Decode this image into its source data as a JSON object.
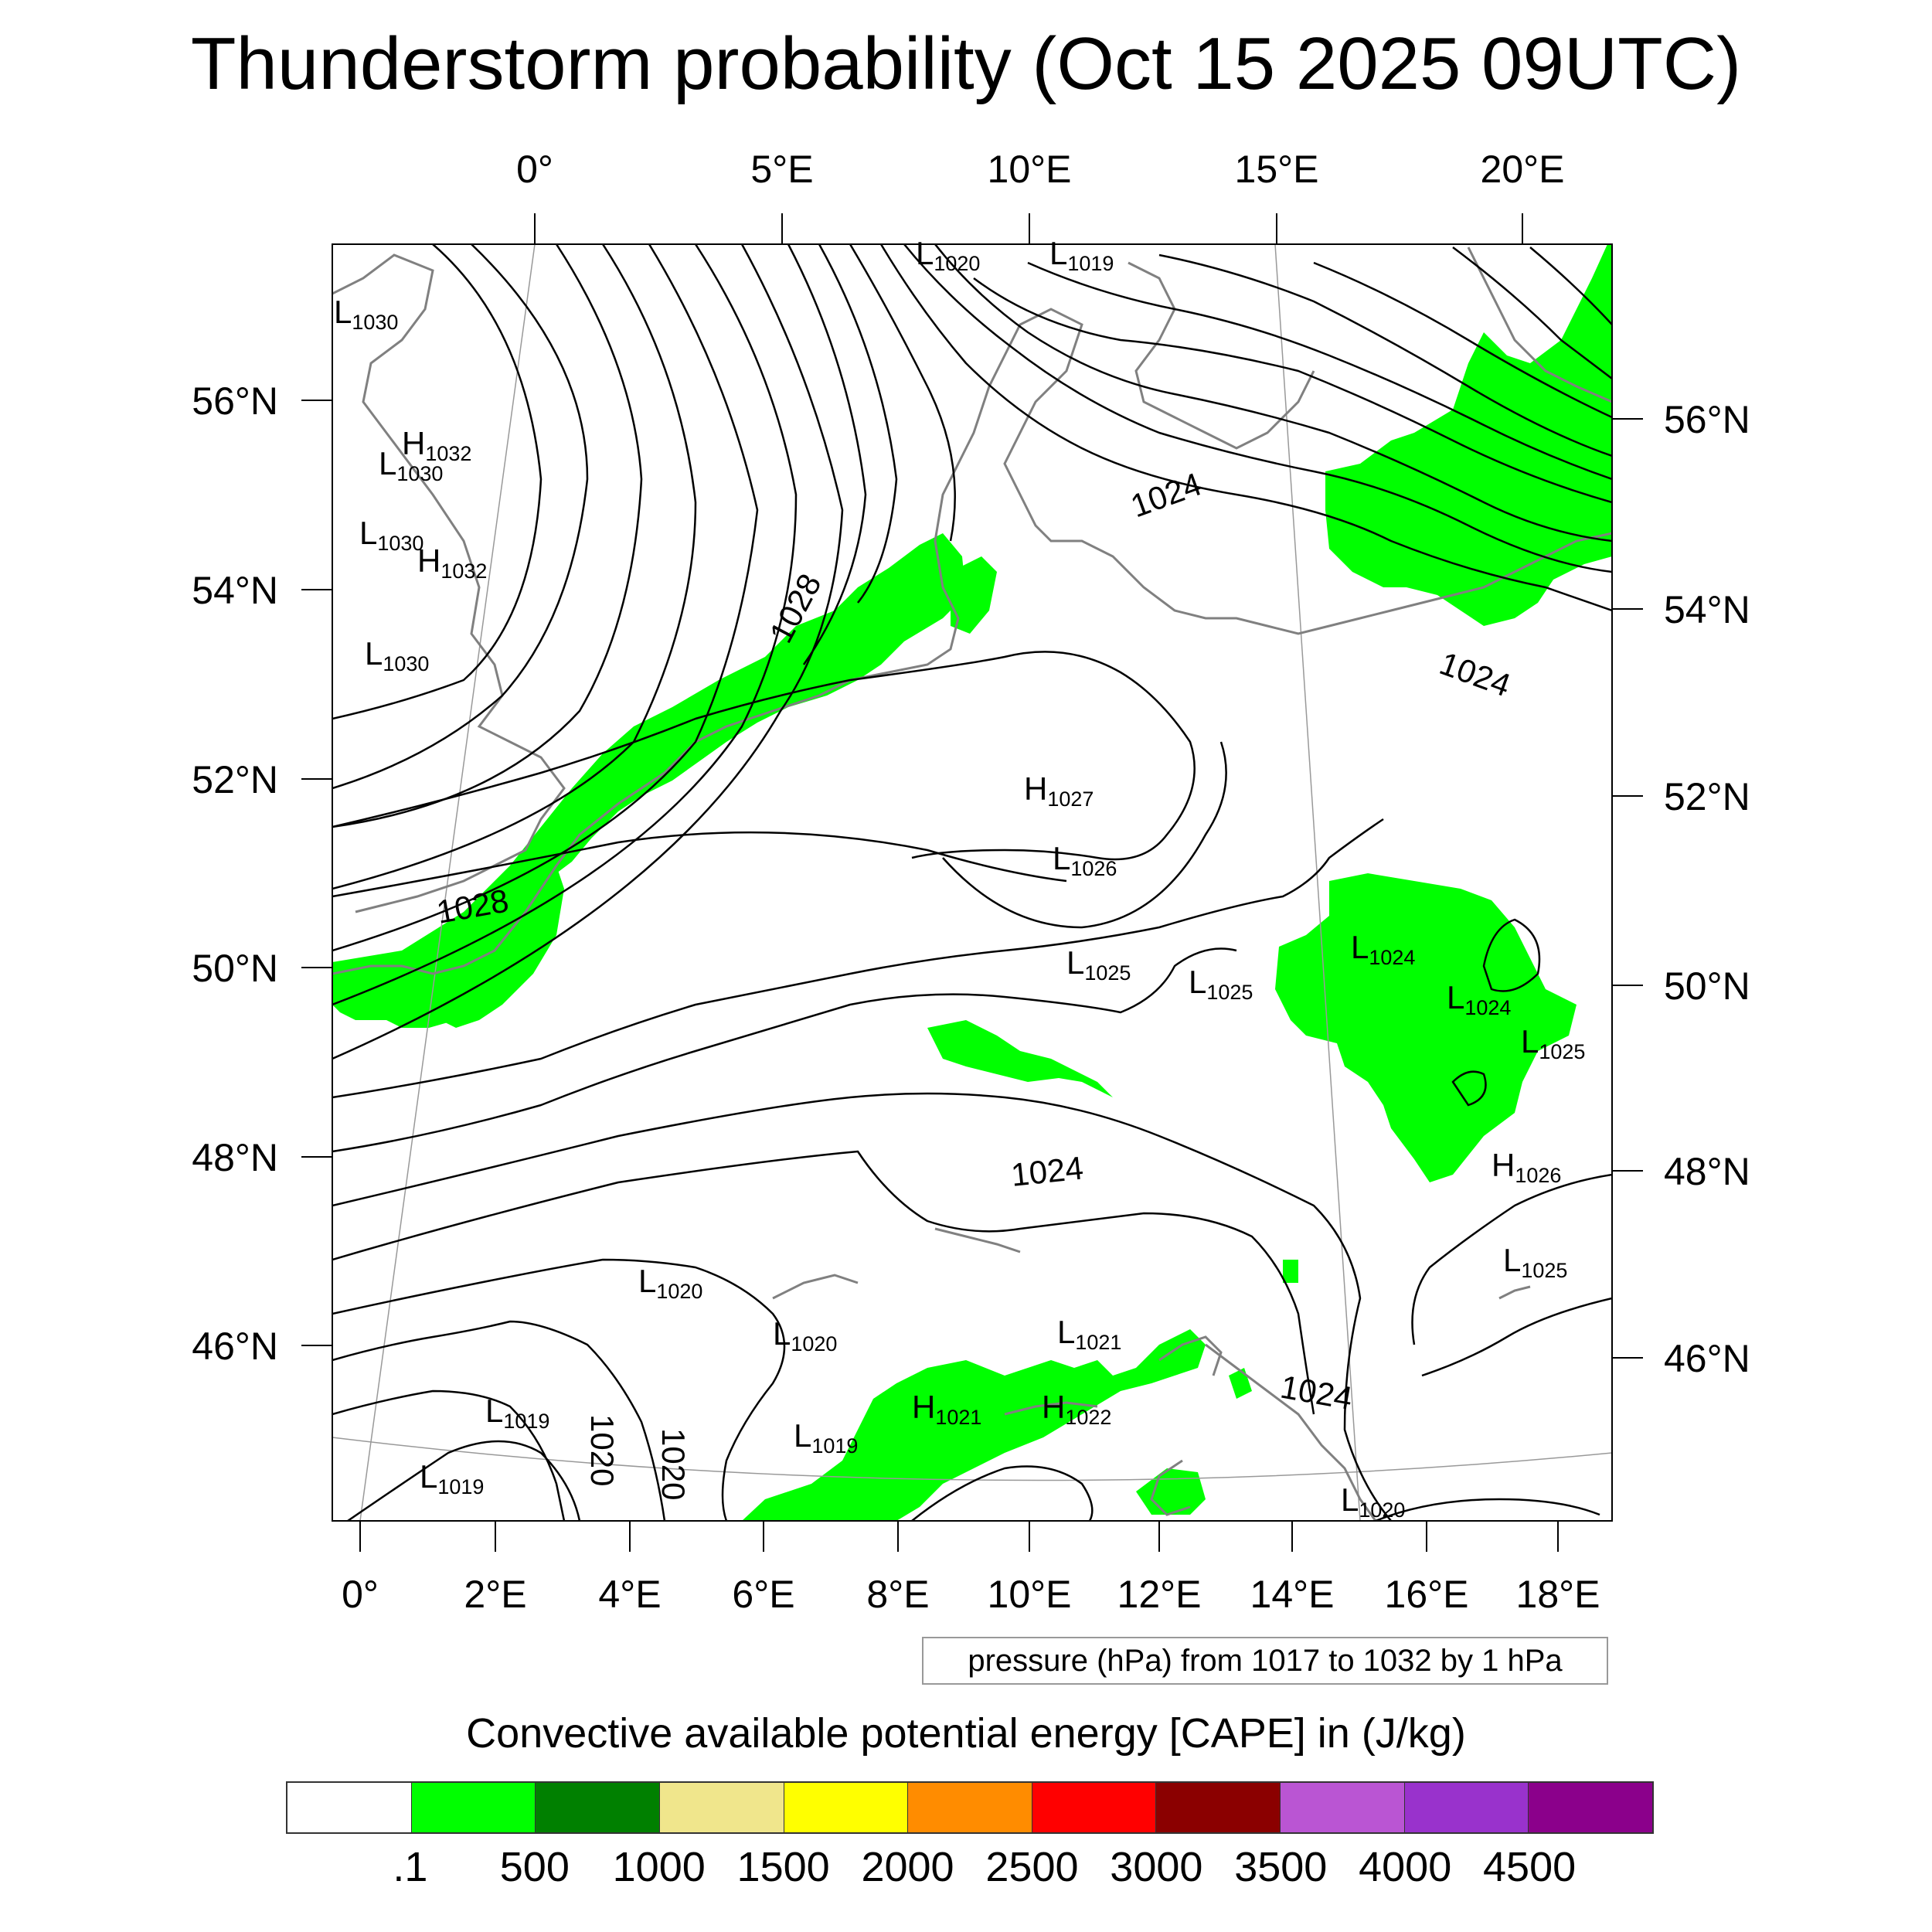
{
  "title": "Thunderstorm probability (Oct 15 2025 09UTC)",
  "top_lon_labels": [
    "0°",
    "5°E",
    "10°E",
    "15°E",
    "20°E"
  ],
  "bottom_lon_labels": [
    "0°",
    "2°E",
    "4°E",
    "6°E",
    "8°E",
    "10°E",
    "12°E",
    "14°E",
    "16°E",
    "18°E"
  ],
  "left_lat_labels": [
    "56°N",
    "54°N",
    "52°N",
    "50°N",
    "48°N",
    "46°N"
  ],
  "right_lat_labels": [
    "56°N",
    "54°N",
    "52°N",
    "50°N",
    "48°N",
    "46°N"
  ],
  "contour_labels": [
    {
      "text": "1028",
      "id": "a"
    },
    {
      "text": "1028",
      "id": "b"
    },
    {
      "text": "1024",
      "id": "c"
    },
    {
      "text": "1024",
      "id": "d"
    },
    {
      "text": "1024",
      "id": "e"
    },
    {
      "text": "1024",
      "id": "f"
    },
    {
      "text": "1020",
      "id": "g"
    },
    {
      "text": "1020",
      "id": "h"
    }
  ],
  "pressure_centers": [
    {
      "type": "L",
      "value": "1020"
    },
    {
      "type": "L",
      "value": "1019"
    },
    {
      "type": "L",
      "value": "1030"
    },
    {
      "type": "H",
      "value": "1032"
    },
    {
      "type": "L",
      "value": "1030"
    },
    {
      "type": "L",
      "value": "1030"
    },
    {
      "type": "H",
      "value": "1032"
    },
    {
      "type": "L",
      "value": "1030"
    },
    {
      "type": "H",
      "value": "1027"
    },
    {
      "type": "L",
      "value": "1026"
    },
    {
      "type": "L",
      "value": "1025"
    },
    {
      "type": "L",
      "value": "1025"
    },
    {
      "type": "L",
      "value": "1024"
    },
    {
      "type": "L",
      "value": "1024"
    },
    {
      "type": "L",
      "value": "1025"
    },
    {
      "type": "H",
      "value": "1026"
    },
    {
      "type": "L",
      "value": "1025"
    },
    {
      "type": "L",
      "value": "1020"
    },
    {
      "type": "L",
      "value": "1020"
    },
    {
      "type": "L",
      "value": "1021"
    },
    {
      "type": "H",
      "value": "1021"
    },
    {
      "type": "H",
      "value": "1022"
    },
    {
      "type": "L",
      "value": "1019"
    },
    {
      "type": "L",
      "value": "1019"
    },
    {
      "type": "L",
      "value": "1019"
    },
    {
      "type": "L",
      "value": "1020"
    }
  ],
  "contour_info": "pressure (hPa) from 1017 to 1032 by 1 hPa",
  "cape_title": "Convective available potential energy [CAPE] in (J/kg)",
  "colorbar": {
    "colors": [
      "#ffffff",
      "#00ff00",
      "#008000",
      "#f0e68c",
      "#ffff00",
      "#ff8c00",
      "#ff0000",
      "#8b0000",
      "#ba55d3",
      "#9932cc",
      "#8b008b"
    ],
    "labels": [
      ".1",
      "500",
      "1000",
      "1500",
      "2000",
      "2500",
      "3000",
      "3500",
      "4000",
      "4500"
    ]
  },
  "colors": {
    "cape_area": "#00ff00",
    "coastline": "#808080",
    "isobar": "#000000",
    "graticule": "#999999"
  }
}
